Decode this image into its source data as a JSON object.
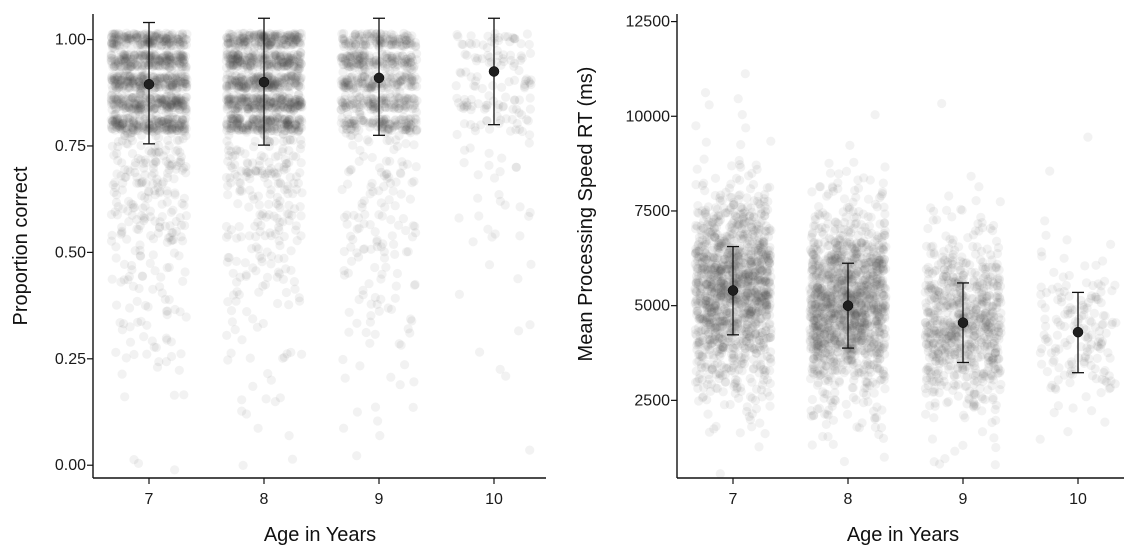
{
  "chart_data": [
    {
      "type": "scatter",
      "xlabel": "Age in Years",
      "ylabel": "Proportion correct",
      "categories": [
        "7",
        "8",
        "9",
        "10"
      ],
      "y_ticks": [
        "0.00",
        "0.25",
        "0.50",
        "0.75",
        "1.00"
      ],
      "ylim": [
        -0.03,
        1.06
      ],
      "grid": false,
      "means": [
        0.895,
        0.9,
        0.91,
        0.925
      ],
      "error_lower": [
        0.755,
        0.752,
        0.775,
        0.8
      ],
      "error_upper": [
        1.04,
        1.05,
        1.05,
        1.05
      ],
      "raw_point_density": [
        1.0,
        1.0,
        0.6,
        0.12
      ],
      "point_color": "#4d4d4d"
    },
    {
      "type": "scatter",
      "xlabel": "Age in Years",
      "ylabel": "Mean Processing Speed RT (ms)",
      "categories": [
        "7",
        "8",
        "9",
        "10"
      ],
      "y_ticks": [
        "2500",
        "5000",
        "7500",
        "10000",
        "12500"
      ],
      "ylim": [
        450,
        12700
      ],
      "grid": false,
      "means": [
        5400,
        5000,
        4550,
        4300
      ],
      "error_lower": [
        4230,
        3880,
        3500,
        3230
      ],
      "error_upper": [
        6560,
        6120,
        5600,
        5350
      ],
      "raw_point_density": [
        1.0,
        1.0,
        0.55,
        0.12
      ],
      "point_color": "#4d4d4d"
    }
  ]
}
